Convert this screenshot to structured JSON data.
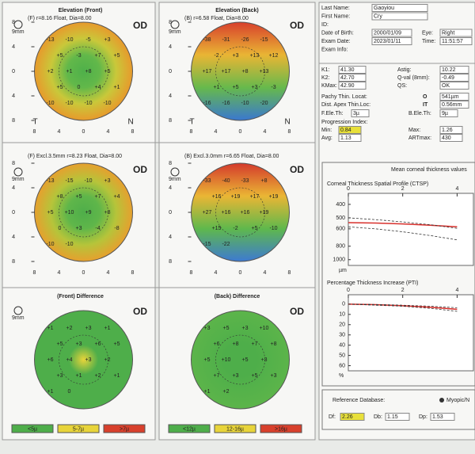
{
  "panels": [
    {
      "title": "Elevation (Front)",
      "subtitle": "(F) r=8.16 Float, Dia=8.00",
      "eye": "OD",
      "scale": "9mm",
      "gradient": "radial",
      "colors": [
        "#4fb04a",
        "#62b84a",
        "#c9c83a",
        "#e79a2c"
      ],
      "numbers": [
        "-13",
        "-10",
        "-5",
        "+3",
        "+5",
        "-3",
        "+7",
        "+5",
        "+2",
        "+1",
        "+8",
        "+5",
        "+5",
        "0",
        "+4",
        "+1",
        "-10",
        "-10",
        "-10",
        "-10"
      ],
      "yticks": [
        "8",
        "4",
        "0",
        "4",
        "8"
      ],
      "xticks": [
        "8",
        "4",
        "0",
        "4",
        "8"
      ],
      "left": "T",
      "right": "N"
    },
    {
      "title": "Elevation (Back)",
      "subtitle": "(B) r=6.58 Float, Dia=8.00",
      "eye": "OD",
      "scale": "9mm",
      "gradient": "linear",
      "colors": [
        "#d8402c",
        "#e9b534",
        "#66b94c",
        "#3a78d0"
      ],
      "numbers": [
        "-38",
        "-31",
        "-26",
        "-15",
        "-2",
        "+3",
        "+13",
        "+12",
        "+17",
        "+17",
        "+8",
        "+13",
        "+1",
        "+5",
        "+3",
        "-3",
        "-16",
        "-16",
        "-10",
        "-20"
      ],
      "yticks": [
        "8",
        "4",
        "0",
        "4",
        "8"
      ],
      "xticks": [
        "8",
        "4",
        "0",
        "4",
        "8"
      ],
      "left": "T",
      "right": "N"
    },
    {
      "subtitle": "(F) Excl.3.5mm r=8.23 Float, Dia=8.00",
      "eye": "OD",
      "scale": "9mm",
      "gradient": "radial",
      "colors": [
        "#4fae4a",
        "#5fb64a",
        "#b6c43a",
        "#e6a02e"
      ],
      "numbers": [
        "-13",
        "-15",
        "-10",
        "+3",
        "+8",
        "+5",
        "+7",
        "+4",
        "+5",
        "+10",
        "+9",
        "+8",
        "0",
        "+3",
        "-4",
        "-8",
        "-10",
        "-10"
      ],
      "yticks": [
        "8",
        "4",
        "0",
        "4",
        "8"
      ],
      "xticks": [
        "8",
        "4",
        "0",
        "4",
        "8"
      ]
    },
    {
      "subtitle": "(B) Excl.3.0mm r=6.65 Float, Dia=8.00",
      "eye": "OD",
      "scale": "9mm",
      "gradient": "linear",
      "colors": [
        "#d43a2c",
        "#eab634",
        "#5fb84c",
        "#3d7ad2"
      ],
      "numbers": [
        "-33",
        "-40",
        "-33",
        "+8",
        "+16",
        "+19",
        "+17",
        "+19",
        "+27",
        "+16",
        "+16",
        "+19",
        "+15",
        "-2",
        "+5",
        "-10",
        "-15",
        "-22"
      ],
      "yticks": [
        "8",
        "4",
        "0",
        "4",
        "8"
      ],
      "xticks": [
        "8",
        "4",
        "0",
        "4",
        "8"
      ]
    },
    {
      "title": "(Front) Difference",
      "eye": "OD",
      "scale": "9mm",
      "gradient": "center",
      "colors": [
        "#e8d43a",
        "#4eae4a",
        "#4eae4a",
        "#4eae4a"
      ],
      "numbers": [
        "+1",
        "+2",
        "+3",
        "+1",
        "+5",
        "+3",
        "+6",
        "+5",
        "+6",
        "+4",
        "+3",
        "+2",
        "+3",
        "+1",
        "+2",
        "+1",
        "+1",
        "0"
      ],
      "legend": [
        {
          "label": "<5µ",
          "color": "#4eae4a"
        },
        {
          "label": "5-7µ",
          "color": "#e8d43a"
        },
        {
          "label": ">7µ",
          "color": "#d8402c"
        }
      ]
    },
    {
      "title": "(Back) Difference",
      "eye": "OD",
      "gradient": "radial",
      "colors": [
        "#4eae4a",
        "#4eae4a",
        "#55b24a",
        "#5cb44a"
      ],
      "numbers": [
        "+3",
        "+5",
        "+3",
        "+10",
        "+6",
        "+8",
        "+7",
        "+8",
        "+5",
        "+10",
        "+5",
        "+3",
        "+7",
        "+3",
        "+5",
        "+3",
        "+1",
        "+2"
      ],
      "legend": [
        {
          "label": "<12µ",
          "color": "#4eae4a"
        },
        {
          "label": "12-16µ",
          "color": "#e8d43a"
        },
        {
          "label": ">16µ",
          "color": "#d8402c"
        }
      ]
    }
  ],
  "patient": [
    {
      "label": "Last Name:",
      "value": "Gaoyiou"
    },
    {
      "label": "First Name:",
      "value": "Cry"
    },
    {
      "label": "ID:"
    },
    {
      "label": "Date of Birth:",
      "value": "2000/01/09",
      "label2": "Eye:",
      "value2": "Right"
    },
    {
      "label": "Exam Date:",
      "value": "2023/01/11",
      "label2": "Time:",
      "value2": "11:51:57"
    },
    {
      "label": "Exam Info:"
    }
  ],
  "keratometry": [
    {
      "label": "K1:",
      "value": "41.30",
      "label2": "Astig:",
      "value2": "10.22"
    },
    {
      "label": "K2:",
      "value": "42.70",
      "color": "#d8302c",
      "label2": "Q-val (8mm):",
      "value2": "-0.49"
    },
    {
      "label": "KMax:",
      "value": "42.90",
      "label2": "QS:",
      "value2": "OK"
    }
  ],
  "thinnest": [
    {
      "label": "Pachy Thin. Locat:",
      "code": "O",
      "value": "541µm"
    },
    {
      "label": "Dist. Apex Thin.Loc:",
      "code": "IT",
      "value": "0.56mm"
    }
  ],
  "elevation": {
    "front_label": "F.Ele.Th:",
    "front": "3µ",
    "back_label": "B.Ele.Th:",
    "back": "9µ"
  },
  "progression": {
    "title": "Progression Index:",
    "rows": [
      {
        "label": "Min:",
        "value": "0.84",
        "color": "#e8e03a",
        "label2": "Max:",
        "value2": "1.26"
      },
      {
        "label": "Avg:",
        "value": "1.13",
        "label2": "ARTmax:",
        "value2": "430"
      }
    ]
  },
  "thickness_header": "Mean corneal thickness values",
  "chart_data": [
    {
      "type": "line",
      "title": "Corneal Thickness Spatial Profile (CTSP)",
      "y_unit": "µm",
      "yscale": "log",
      "yinverted": true,
      "xlim": [
        0,
        4.6
      ],
      "xticks": [
        0,
        2,
        4
      ],
      "ylim": [
        370,
        1100
      ],
      "yticks": [
        400,
        500,
        600,
        800,
        1000
      ],
      "x": [
        0,
        1,
        2,
        3,
        4
      ],
      "series": [
        {
          "color": "#d8302c",
          "dash": "solid",
          "values": [
            541,
            545,
            553,
            565,
            580
          ]
        },
        {
          "color": "#333333",
          "dash": "dashed",
          "values": [
            500,
            515,
            535,
            560,
            595
          ]
        },
        {
          "color": "#333333",
          "dash": "dashed",
          "values": [
            580,
            600,
            630,
            670,
            720
          ]
        }
      ]
    },
    {
      "type": "line",
      "title": "Percentage Thickness Increase (PTI)",
      "y_unit": "%",
      "yinverted": true,
      "xlim": [
        0,
        4.6
      ],
      "xticks": [
        0,
        2,
        4
      ],
      "ylim": [
        -3,
        65
      ],
      "yticks": [
        0,
        10,
        20,
        30,
        40,
        50,
        60
      ],
      "x": [
        0,
        1,
        2,
        3,
        4
      ],
      "series": [
        {
          "color": "#d8302c",
          "dash": "solid",
          "values": [
            0,
            0.5,
            1.5,
            3,
            5
          ]
        },
        {
          "color": "#333333",
          "dash": "dashed",
          "values": [
            0,
            1,
            2,
            4,
            7
          ]
        },
        {
          "color": "#333333",
          "dash": "dashed",
          "values": [
            0,
            0.3,
            1,
            2,
            3.5
          ]
        }
      ]
    }
  ],
  "reference": {
    "label": "Reference Database:",
    "option": "Myopic/N",
    "values": [
      {
        "label": "Df:",
        "value": "2.26",
        "color": "#e8e03a"
      },
      {
        "label": "Db:",
        "value": "1.15"
      },
      {
        "label": "Dp:",
        "value": "1.53"
      }
    ]
  }
}
